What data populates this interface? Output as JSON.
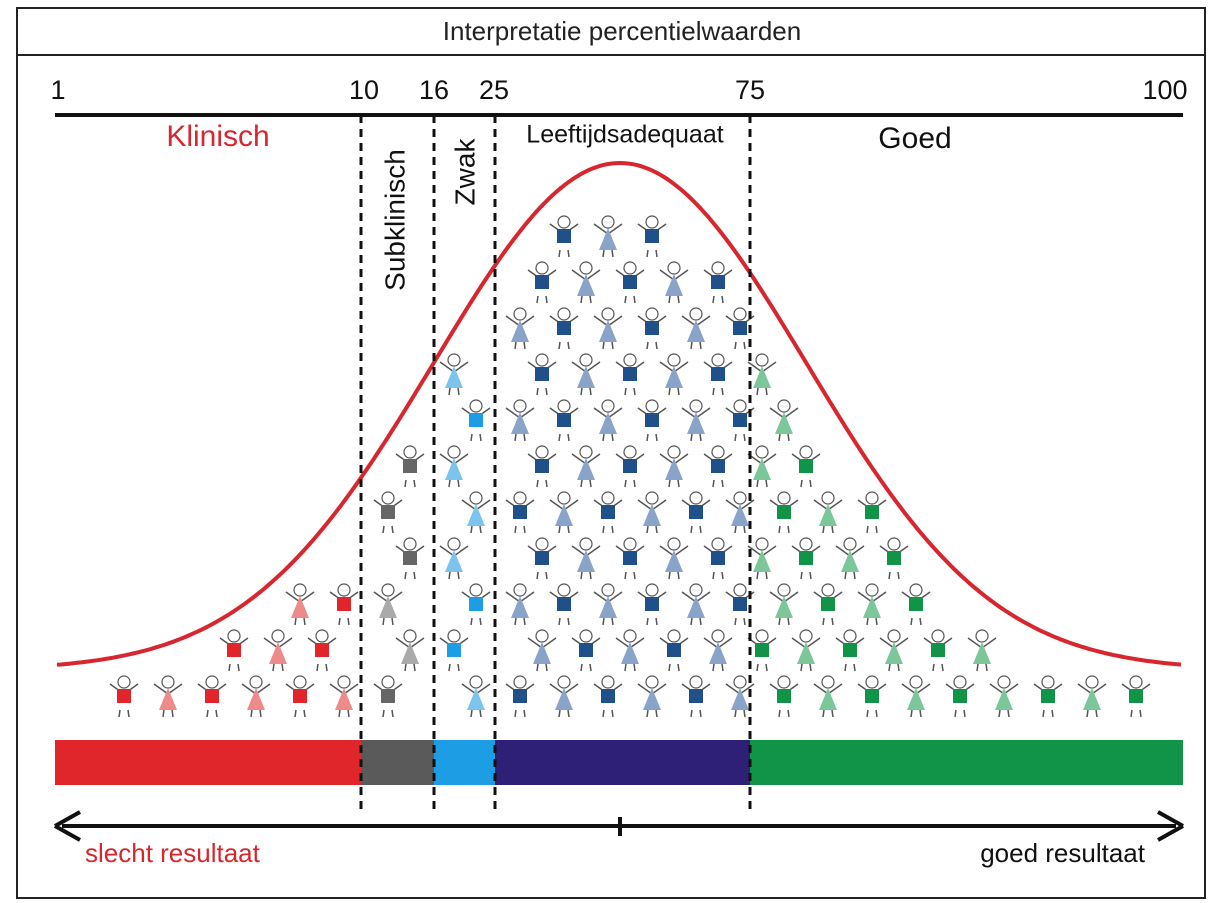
{
  "title": "Interpretatie percentielwaarden",
  "percentiles": [
    1,
    10,
    16,
    25,
    75,
    100
  ],
  "zones": [
    "Klinisch",
    "Subklinisch",
    "Zwak",
    "Leeftijdsadequaat",
    "Goed"
  ],
  "arrow": {
    "left": "slecht resultaat",
    "right": "goed resultaat"
  }
}
